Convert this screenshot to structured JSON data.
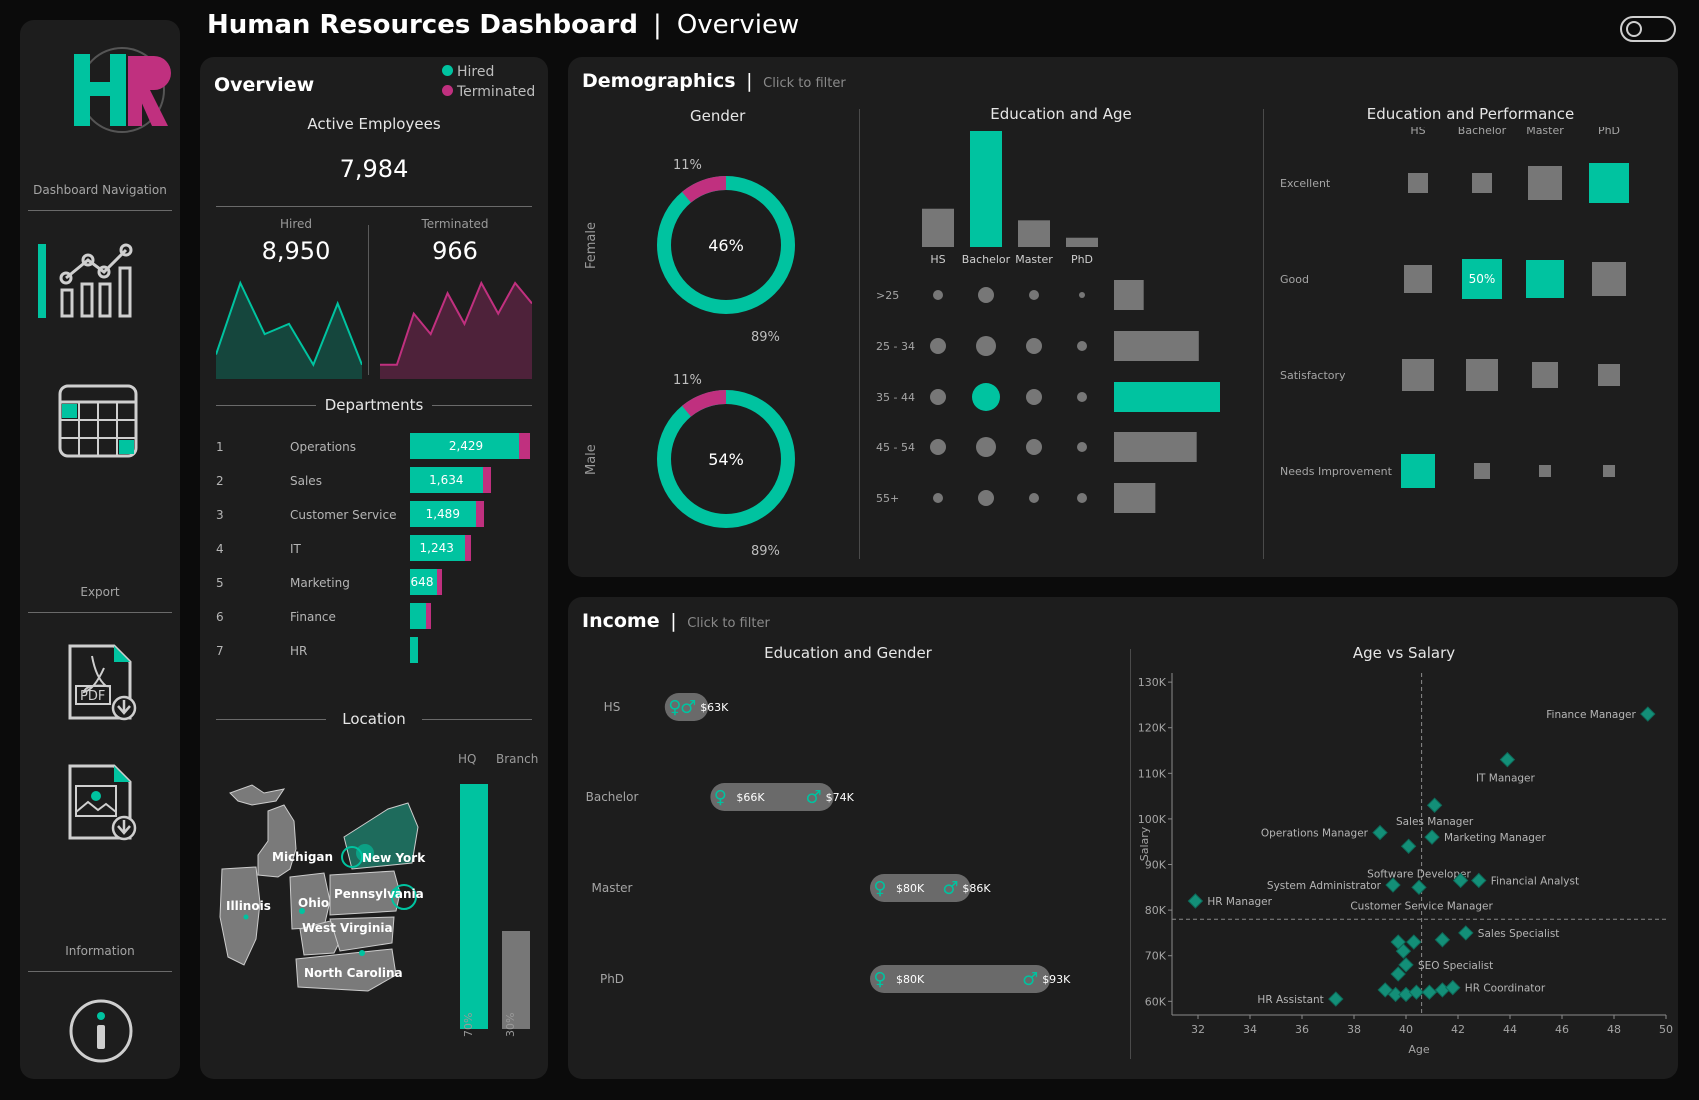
{
  "header": {
    "title": "Human Resources Dashboard",
    "separator": "|",
    "subtitle": "Overview"
  },
  "colors": {
    "accent": "#00c3a0",
    "secondary": "#c0307f",
    "neutral": "#777777",
    "panel": "#1d1d1d"
  },
  "nav": {
    "logo_text": "HR",
    "dashboard_navigation": "Dashboard Navigation",
    "export": "Export",
    "information": "Information",
    "pdf_label": "PDF",
    "icons": [
      "chart-icon",
      "calendar-icon",
      "pdf-download-icon",
      "image-download-icon",
      "info-icon"
    ]
  },
  "overview": {
    "title": "Overview",
    "legend_hired": "Hired",
    "legend_terminated": "Terminated",
    "active_label": "Active Employees",
    "active_value": "7,984",
    "hired_label": "Hired",
    "hired_value": "8,950",
    "terminated_label": "Terminated",
    "terminated_value": "966",
    "hired_trend": [
      2,
      9,
      4,
      5,
      1,
      7,
      1
    ],
    "terminated_trend": [
      1,
      1,
      6,
      4,
      8,
      5,
      9,
      6,
      9,
      7
    ],
    "departments_title": "Departments",
    "departments": [
      {
        "rank": "1",
        "name": "Operations",
        "value": "2,429",
        "v": 2429,
        "term": 0.09
      },
      {
        "rank": "2",
        "name": "Sales",
        "value": "1,634",
        "v": 1634,
        "term": 0.1
      },
      {
        "rank": "3",
        "name": "Customer Service",
        "value": "1,489",
        "v": 1489,
        "term": 0.1
      },
      {
        "rank": "4",
        "name": "IT",
        "value": "1,243",
        "v": 1243,
        "term": 0.1
      },
      {
        "rank": "5",
        "name": "Marketing",
        "value": "648",
        "v": 648,
        "term": 0.1
      },
      {
        "rank": "6",
        "name": "Finance",
        "value": "",
        "v": 420,
        "term": 0.15
      },
      {
        "rank": "7",
        "name": "HR",
        "value": "",
        "v": 170,
        "term": 0.0
      }
    ],
    "location_title": "Location",
    "location_states": [
      "Michigan",
      "New York",
      "Illinois",
      "Ohio",
      "Pennsylvania",
      "West Virginia",
      "North Carolina"
    ],
    "hq_label": "HQ",
    "branch_label": "Branch",
    "hq_pct": "70%",
    "branch_pct": "30%",
    "hq_share": 0.7,
    "branch_share": 0.3
  },
  "demographics": {
    "title": "Demographics",
    "separator": "|",
    "filter_hint": "Click to filter",
    "gender": {
      "title": "Gender",
      "female": {
        "label": "Female",
        "center": "46%",
        "term": "11%",
        "hired": "89%",
        "term_share": 0.11
      },
      "male": {
        "label": "Male",
        "center": "54%",
        "term": "11%",
        "hired": "89%",
        "term_share": 0.11
      }
    },
    "education_age": {
      "title": "Education and Age",
      "education": [
        "HS",
        "Bachelor",
        "Master",
        "PhD"
      ],
      "education_share": [
        0.33,
        1.0,
        0.23,
        0.08
      ],
      "age_groups": [
        ">25",
        "25 - 34",
        "35 - 44",
        "45 - 54",
        "55+"
      ],
      "age_share": [
        0.28,
        0.8,
        1.0,
        0.78,
        0.39
      ],
      "bubbles": [
        [
          1,
          2,
          1,
          0
        ],
        [
          2,
          3,
          2,
          1
        ],
        [
          2,
          4,
          2,
          1
        ],
        [
          2,
          3,
          2,
          1
        ],
        [
          1,
          2,
          1,
          1
        ]
      ]
    },
    "education_performance": {
      "title": "Education and Performance",
      "columns": [
        "HS",
        "Bachelor",
        "Master",
        "PhD"
      ],
      "rows": [
        "Excellent",
        "Good",
        "Satisfactory",
        "Needs Improvement"
      ],
      "cells": [
        [
          0.5,
          0.5,
          0.85,
          1.0
        ],
        [
          0.7,
          1.0,
          0.95,
          0.85
        ],
        [
          0.8,
          0.8,
          0.65,
          0.55
        ],
        [
          0.85,
          0.4,
          0.3,
          0.3
        ]
      ],
      "highlight": [
        [
          0,
          3
        ],
        [
          1,
          1
        ],
        [
          1,
          2
        ],
        [
          3,
          0
        ]
      ],
      "highlight_label": "50%"
    }
  },
  "income": {
    "title": "Income",
    "separator": "|",
    "filter_hint": "Click to filter",
    "education_gender": {
      "title": "Education and Gender",
      "rows": [
        {
          "label": "HS",
          "low": "",
          "high": "$63K",
          "low_v": 62,
          "high_v": 63
        },
        {
          "label": "Bachelor",
          "low": "$66K",
          "high": "$74K",
          "low_v": 66,
          "high_v": 74
        },
        {
          "label": "Master",
          "low": "$80K",
          "high": "$86K",
          "low_v": 80,
          "high_v": 86
        },
        {
          "label": "PhD",
          "low": "$80K",
          "high": "$93K",
          "low_v": 80,
          "high_v": 93
        }
      ]
    }
  },
  "chart_data": {
    "type": "scatter",
    "title": "Age vs Salary",
    "xlabel": "Age",
    "ylabel": "Salary",
    "xlim": [
      31,
      50
    ],
    "ylim": [
      57,
      132
    ],
    "xticks": [
      "32",
      "34",
      "36",
      "38",
      "40",
      "42",
      "44",
      "46",
      "48",
      "50"
    ],
    "yticks": [
      "60K",
      "70K",
      "80K",
      "90K",
      "100K",
      "110K",
      "120K",
      "130K"
    ],
    "ref_x": 40.6,
    "ref_y": 78,
    "points": [
      {
        "x": 49.3,
        "y": 123,
        "label": "Finance Manager"
      },
      {
        "x": 43.9,
        "y": 113,
        "label": "IT Manager"
      },
      {
        "x": 41.1,
        "y": 103,
        "label": "Sales Manager"
      },
      {
        "x": 39.0,
        "y": 97,
        "label": "Operations Manager"
      },
      {
        "x": 41.0,
        "y": 96,
        "label": "Marketing Manager"
      },
      {
        "x": 40.1,
        "y": 94,
        "label": ""
      },
      {
        "x": 39.5,
        "y": 85.5,
        "label": "System Administrator"
      },
      {
        "x": 40.5,
        "y": 85,
        "label": "Software Developer"
      },
      {
        "x": 42.1,
        "y": 86.5,
        "label": ""
      },
      {
        "x": 42.8,
        "y": 86.5,
        "label": "Financial Analyst"
      },
      {
        "x": 31.9,
        "y": 82,
        "label": "HR Manager"
      },
      {
        "x": 42.3,
        "y": 75,
        "label": "Sales Specialist"
      },
      {
        "x": 41.4,
        "y": 73.5,
        "label": ""
      },
      {
        "x": 39.7,
        "y": 73,
        "label": ""
      },
      {
        "x": 40.3,
        "y": 73,
        "label": ""
      },
      {
        "x": 39.9,
        "y": 71,
        "label": ""
      },
      {
        "x": 40.0,
        "y": 68,
        "label": "SEO Specialist"
      },
      {
        "x": 39.7,
        "y": 66,
        "label": ""
      },
      {
        "x": 37.3,
        "y": 60.5,
        "label": "HR Assistant"
      },
      {
        "x": 39.2,
        "y": 62.5,
        "label": ""
      },
      {
        "x": 39.6,
        "y": 61.5,
        "label": ""
      },
      {
        "x": 40.0,
        "y": 61.5,
        "label": ""
      },
      {
        "x": 40.4,
        "y": 62,
        "label": ""
      },
      {
        "x": 40.9,
        "y": 62,
        "label": ""
      },
      {
        "x": 41.4,
        "y": 62.5,
        "label": ""
      },
      {
        "x": 41.8,
        "y": 63,
        "label": "HR Coordinator"
      }
    ],
    "extra_labels": [
      {
        "text": "Customer Service Manager",
        "x": 40.6,
        "y": 81
      }
    ]
  }
}
